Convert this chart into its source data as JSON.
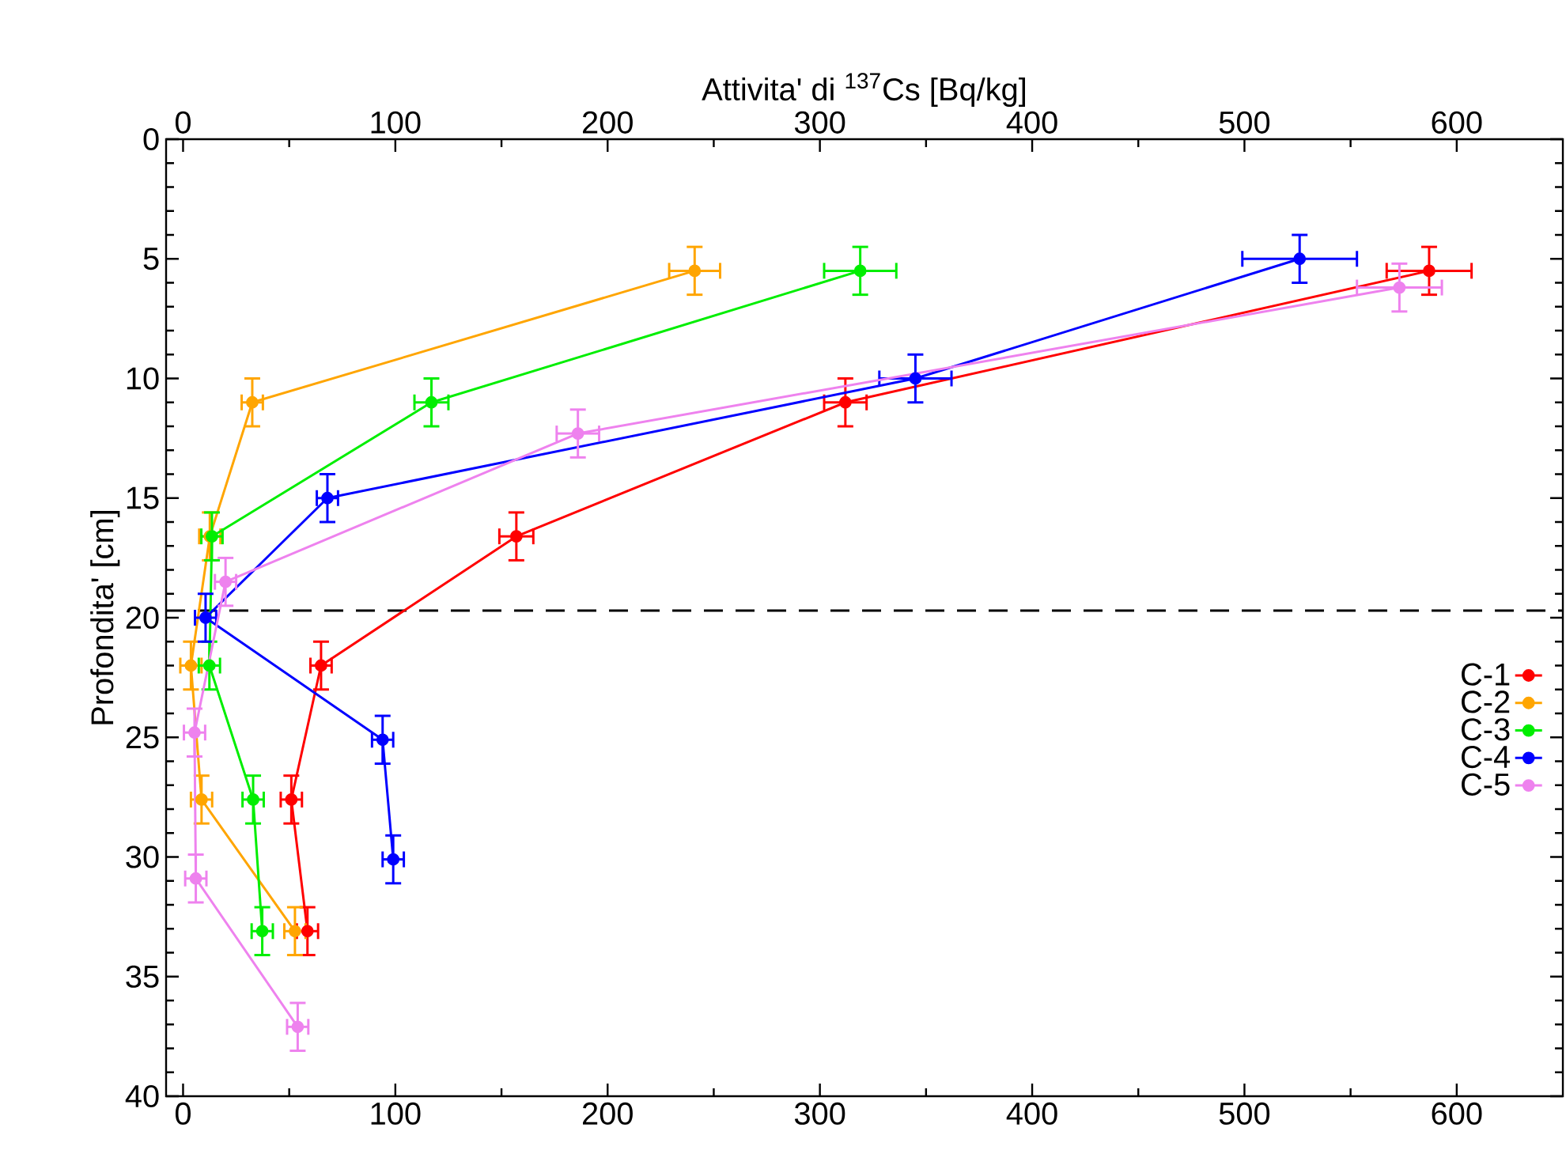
{
  "chart_data": {
    "type": "line",
    "x2label": "Attivita' di $^{137}$Cs [Bq/kg]",
    "ylabel": "Profondita' [cm]",
    "xlim": [
      -8,
      650
    ],
    "xticks": [
      0,
      100,
      200,
      300,
      400,
      500,
      600
    ],
    "x2lim": [
      -8,
      650
    ],
    "x2ticks": [
      0,
      100,
      200,
      300,
      400,
      500,
      600
    ],
    "ylim": [
      40,
      0
    ],
    "yticks": [
      0,
      5,
      10,
      15,
      20,
      25,
      30,
      35,
      40
    ],
    "marker": "circle",
    "legend": "right",
    "ref_lines": [
      {
        "axis": "y",
        "value": 19.7,
        "color": "#000000",
        "line_style": "dashed"
      }
    ],
    "series": [
      {
        "name": "C-1",
        "color": "#ff0000",
        "x": [
          587,
          312,
          157,
          65,
          51,
          58.6
        ],
        "values": [
          5.5,
          11,
          16.6,
          22,
          27.6,
          33.1
        ],
        "errors": [
          1,
          1,
          1,
          1,
          1,
          1
        ],
        "xerrors": [
          20,
          10,
          8,
          5,
          5,
          5
        ]
      },
      {
        "name": "C-2",
        "color": "#ffa500",
        "x": [
          241,
          32.6,
          12.6,
          3.7,
          8.7,
          52.7
        ],
        "values": [
          5.5,
          11,
          16.6,
          22,
          27.6,
          33.1
        ],
        "errors": [
          1,
          1,
          1,
          1,
          1,
          1
        ],
        "xerrors": [
          12,
          5,
          5,
          5,
          5,
          5
        ]
      },
      {
        "name": "C-3",
        "color": "#00ee00",
        "x": [
          319,
          117,
          13.6,
          12.4,
          33,
          37.3
        ],
        "values": [
          5.5,
          11,
          16.6,
          22,
          27.6,
          33.1
        ],
        "errors": [
          1,
          1,
          1,
          1,
          1,
          1
        ],
        "xerrors": [
          17,
          8,
          5,
          5,
          5,
          5
        ]
      },
      {
        "name": "C-4",
        "color": "#0000ff",
        "x": [
          526,
          345,
          68,
          10.6,
          94,
          99
        ],
        "values": [
          5.0,
          10.0,
          15.0,
          20.0,
          25.1,
          30.1
        ],
        "errors": [
          1,
          1,
          1,
          1,
          1,
          1
        ],
        "xerrors": [
          27,
          17,
          5,
          5,
          5,
          5
        ]
      },
      {
        "name": "C-5",
        "color": "#ee82ee",
        "x": [
          573,
          186,
          20,
          5.4,
          6,
          54
        ],
        "values": [
          6.2,
          12.3,
          18.5,
          24.8,
          30.9,
          37.1
        ],
        "errors": [
          1,
          1,
          1,
          1,
          1,
          1
        ],
        "xerrors": [
          20,
          10,
          5,
          5,
          5,
          5
        ]
      }
    ]
  }
}
